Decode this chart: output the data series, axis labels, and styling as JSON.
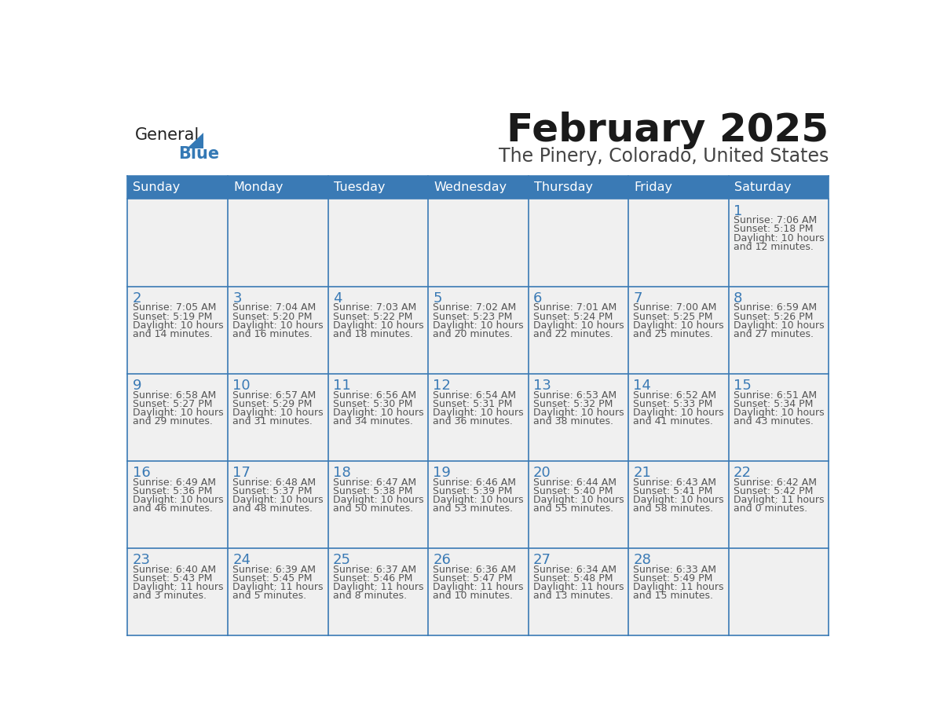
{
  "title": "February 2025",
  "subtitle": "The Pinery, Colorado, United States",
  "header_bg": "#3a7ab5",
  "header_text_color": "#ffffff",
  "day_names": [
    "Sunday",
    "Monday",
    "Tuesday",
    "Wednesday",
    "Thursday",
    "Friday",
    "Saturday"
  ],
  "cell_bg": "#f0f0f0",
  "cell_border_color": "#3a7ab5",
  "date_text_color": "#3a7ab5",
  "info_text_color": "#555555",
  "logo_general_color": "#222222",
  "logo_blue_color": "#3479b5",
  "weeks": [
    [
      {
        "day": null,
        "info": null
      },
      {
        "day": null,
        "info": null
      },
      {
        "day": null,
        "info": null
      },
      {
        "day": null,
        "info": null
      },
      {
        "day": null,
        "info": null
      },
      {
        "day": null,
        "info": null
      },
      {
        "day": "1",
        "info": "Sunrise: 7:06 AM\nSunset: 5:18 PM\nDaylight: 10 hours\nand 12 minutes."
      }
    ],
    [
      {
        "day": "2",
        "info": "Sunrise: 7:05 AM\nSunset: 5:19 PM\nDaylight: 10 hours\nand 14 minutes."
      },
      {
        "day": "3",
        "info": "Sunrise: 7:04 AM\nSunset: 5:20 PM\nDaylight: 10 hours\nand 16 minutes."
      },
      {
        "day": "4",
        "info": "Sunrise: 7:03 AM\nSunset: 5:22 PM\nDaylight: 10 hours\nand 18 minutes."
      },
      {
        "day": "5",
        "info": "Sunrise: 7:02 AM\nSunset: 5:23 PM\nDaylight: 10 hours\nand 20 minutes."
      },
      {
        "day": "6",
        "info": "Sunrise: 7:01 AM\nSunset: 5:24 PM\nDaylight: 10 hours\nand 22 minutes."
      },
      {
        "day": "7",
        "info": "Sunrise: 7:00 AM\nSunset: 5:25 PM\nDaylight: 10 hours\nand 25 minutes."
      },
      {
        "day": "8",
        "info": "Sunrise: 6:59 AM\nSunset: 5:26 PM\nDaylight: 10 hours\nand 27 minutes."
      }
    ],
    [
      {
        "day": "9",
        "info": "Sunrise: 6:58 AM\nSunset: 5:27 PM\nDaylight: 10 hours\nand 29 minutes."
      },
      {
        "day": "10",
        "info": "Sunrise: 6:57 AM\nSunset: 5:29 PM\nDaylight: 10 hours\nand 31 minutes."
      },
      {
        "day": "11",
        "info": "Sunrise: 6:56 AM\nSunset: 5:30 PM\nDaylight: 10 hours\nand 34 minutes."
      },
      {
        "day": "12",
        "info": "Sunrise: 6:54 AM\nSunset: 5:31 PM\nDaylight: 10 hours\nand 36 minutes."
      },
      {
        "day": "13",
        "info": "Sunrise: 6:53 AM\nSunset: 5:32 PM\nDaylight: 10 hours\nand 38 minutes."
      },
      {
        "day": "14",
        "info": "Sunrise: 6:52 AM\nSunset: 5:33 PM\nDaylight: 10 hours\nand 41 minutes."
      },
      {
        "day": "15",
        "info": "Sunrise: 6:51 AM\nSunset: 5:34 PM\nDaylight: 10 hours\nand 43 minutes."
      }
    ],
    [
      {
        "day": "16",
        "info": "Sunrise: 6:49 AM\nSunset: 5:36 PM\nDaylight: 10 hours\nand 46 minutes."
      },
      {
        "day": "17",
        "info": "Sunrise: 6:48 AM\nSunset: 5:37 PM\nDaylight: 10 hours\nand 48 minutes."
      },
      {
        "day": "18",
        "info": "Sunrise: 6:47 AM\nSunset: 5:38 PM\nDaylight: 10 hours\nand 50 minutes."
      },
      {
        "day": "19",
        "info": "Sunrise: 6:46 AM\nSunset: 5:39 PM\nDaylight: 10 hours\nand 53 minutes."
      },
      {
        "day": "20",
        "info": "Sunrise: 6:44 AM\nSunset: 5:40 PM\nDaylight: 10 hours\nand 55 minutes."
      },
      {
        "day": "21",
        "info": "Sunrise: 6:43 AM\nSunset: 5:41 PM\nDaylight: 10 hours\nand 58 minutes."
      },
      {
        "day": "22",
        "info": "Sunrise: 6:42 AM\nSunset: 5:42 PM\nDaylight: 11 hours\nand 0 minutes."
      }
    ],
    [
      {
        "day": "23",
        "info": "Sunrise: 6:40 AM\nSunset: 5:43 PM\nDaylight: 11 hours\nand 3 minutes."
      },
      {
        "day": "24",
        "info": "Sunrise: 6:39 AM\nSunset: 5:45 PM\nDaylight: 11 hours\nand 5 minutes."
      },
      {
        "day": "25",
        "info": "Sunrise: 6:37 AM\nSunset: 5:46 PM\nDaylight: 11 hours\nand 8 minutes."
      },
      {
        "day": "26",
        "info": "Sunrise: 6:36 AM\nSunset: 5:47 PM\nDaylight: 11 hours\nand 10 minutes."
      },
      {
        "day": "27",
        "info": "Sunrise: 6:34 AM\nSunset: 5:48 PM\nDaylight: 11 hours\nand 13 minutes."
      },
      {
        "day": "28",
        "info": "Sunrise: 6:33 AM\nSunset: 5:49 PM\nDaylight: 11 hours\nand 15 minutes."
      },
      {
        "day": null,
        "info": null
      }
    ]
  ]
}
